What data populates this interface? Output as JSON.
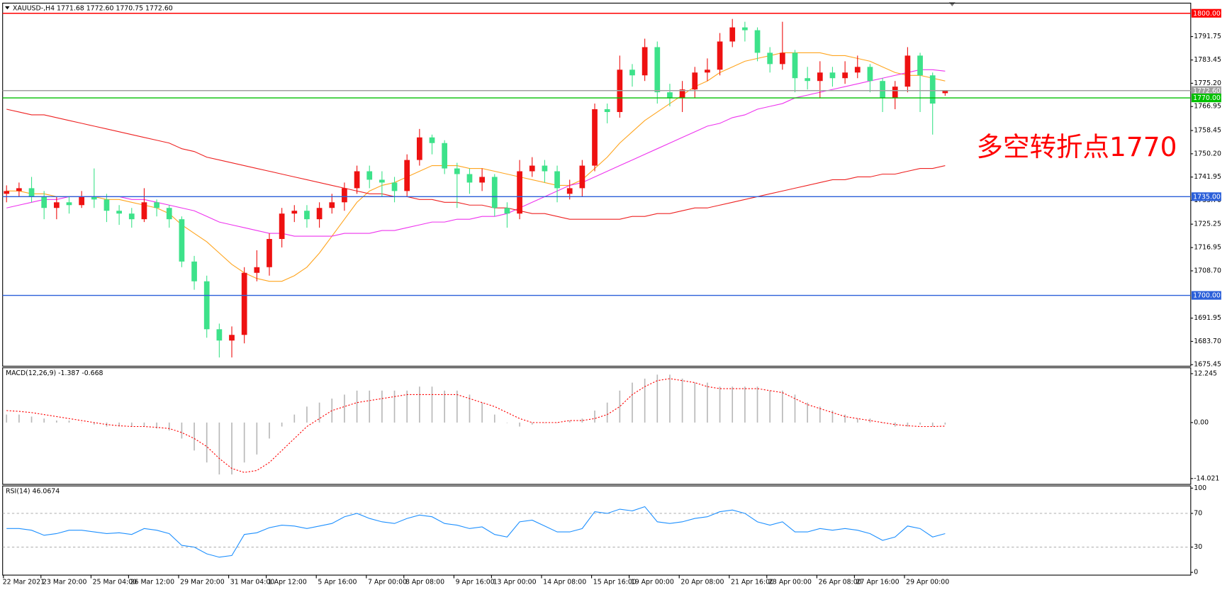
{
  "chart_data": [
    {
      "type": "candlestick",
      "title": "XAUUSD-,H4  1771.68 1772.60 1770.75 1772.60",
      "annotation": "多空转折点1770",
      "annotation_color": "#ff0000",
      "up_color": "#ee1111",
      "down_color": "#3de28a",
      "categories": [
        "22 Mar 2021",
        null,
        null,
        "23 Mar 20:00",
        null,
        null,
        null,
        "25 Mar 04:00",
        null,
        null,
        "26 Mar 12:00",
        null,
        null,
        null,
        "29 Mar 20:00",
        null,
        null,
        null,
        "31 Mar 04:00",
        null,
        null,
        "1 Apr 12:00",
        null,
        null,
        null,
        "5 Apr 16:00",
        null,
        null,
        null,
        "7 Apr 00:00",
        null,
        null,
        "8 Apr 08:00",
        null,
        null,
        null,
        "9 Apr 16:00",
        null,
        null,
        "13 Apr 00:00",
        null,
        null,
        null,
        "14 Apr 08:00",
        null,
        null,
        null,
        "15 Apr 16:00",
        null,
        null,
        "19 Apr 00:00",
        null,
        null,
        null,
        "20 Apr 08:00",
        null,
        null,
        null,
        "21 Apr 16:00",
        null,
        null,
        "23 Apr 00:00",
        null,
        null,
        null,
        "26 Apr 08:00",
        null,
        null,
        "27 Apr 16:00",
        null,
        null,
        null,
        "29 Apr 00:00",
        null,
        null,
        null
      ],
      "open": [
        1736,
        1737,
        1738,
        1735,
        1731,
        1733,
        1732,
        1735,
        1734,
        1730,
        1729,
        1727,
        1733,
        1731,
        1727,
        1712,
        1705,
        1688,
        1684,
        1686,
        1708,
        1710,
        1720,
        1729,
        1730,
        1727,
        1731,
        1733,
        1738,
        1744,
        1741,
        1740,
        1737,
        1748,
        1756,
        1754,
        1745,
        1743,
        1740,
        1742,
        1731,
        1729,
        1744,
        1746,
        1744,
        1736,
        1738,
        1746,
        1766,
        1765,
        1780,
        1778,
        1788,
        1772,
        1770,
        1773,
        1779,
        1780,
        1790,
        1795,
        1794,
        1786,
        1782,
        1786,
        1777,
        1776,
        1779,
        1777,
        1779,
        1781,
        1776,
        1770,
        1774,
        1785,
        1778,
        1771.68
      ],
      "high": [
        1739,
        1740,
        1742,
        1737,
        1735,
        1735,
        1737,
        1745,
        1736,
        1732,
        1731,
        1738,
        1734,
        1732,
        1728,
        1714,
        1707,
        1690,
        1689,
        1710,
        1716,
        1722,
        1731,
        1732,
        1732,
        1733,
        1736,
        1740,
        1746,
        1746,
        1744,
        1742,
        1750,
        1759,
        1757,
        1755,
        1747,
        1745,
        1745,
        1743,
        1733,
        1748,
        1749,
        1748,
        1746,
        1741,
        1748,
        1768,
        1768,
        1785,
        1782,
        1791,
        1790,
        1775,
        1776,
        1781,
        1784,
        1793,
        1798,
        1797,
        1795,
        1788,
        1797,
        1787,
        1781,
        1783,
        1781,
        1783,
        1785,
        1782,
        1777,
        1776,
        1788,
        1786,
        1779,
        1772.6
      ],
      "low": [
        1733,
        1735,
        1733,
        1727,
        1727,
        1729,
        1731,
        1731,
        1726,
        1725,
        1724,
        1726,
        1728,
        1724,
        1710,
        1702,
        1685,
        1678,
        1678,
        1683,
        1705,
        1707,
        1717,
        1726,
        1724,
        1724,
        1729,
        1730,
        1736,
        1738,
        1735,
        1733,
        1735,
        1746,
        1750,
        1743,
        1731,
        1736,
        1737,
        1728,
        1724,
        1727,
        1742,
        1740,
        1733,
        1734,
        1735,
        1744,
        1761,
        1763,
        1774,
        1776,
        1768,
        1767,
        1765,
        1770,
        1776,
        1778,
        1788,
        1790,
        1783,
        1779,
        1780,
        1772,
        1773,
        1770,
        1774,
        1775,
        1777,
        1772,
        1765,
        1766,
        1772,
        1765,
        1757,
        1770.75
      ],
      "close": [
        1737,
        1738,
        1735,
        1731,
        1733,
        1732,
        1735,
        1734,
        1730,
        1729,
        1727,
        1733,
        1731,
        1727,
        1712,
        1705,
        1688,
        1684,
        1686,
        1708,
        1710,
        1720,
        1729,
        1730,
        1727,
        1731,
        1733,
        1738,
        1744,
        1741,
        1740,
        1737,
        1748,
        1756,
        1754,
        1745,
        1743,
        1740,
        1742,
        1731,
        1729,
        1744,
        1746,
        1744,
        1738,
        1738,
        1746,
        1766,
        1765,
        1780,
        1778,
        1788,
        1772,
        1770,
        1773,
        1779,
        1780,
        1790,
        1795,
        1794,
        1786,
        1782,
        1786,
        1777,
        1776,
        1779,
        1777,
        1779,
        1781,
        1776,
        1770,
        1774,
        1785,
        1778,
        1768,
        1772.6
      ],
      "lines": [
        {
          "color": "#ffa51f",
          "values": [
            1737,
            1737,
            1736,
            1736,
            1735,
            1735,
            1735,
            1735,
            1734,
            1734,
            1733,
            1732,
            1731,
            1729,
            1725,
            1722,
            1719,
            1715,
            1711,
            1708,
            1706,
            1705,
            1705,
            1707,
            1710,
            1715,
            1721,
            1727,
            1733,
            1737,
            1739,
            1740,
            1742,
            1744,
            1746,
            1746,
            1746,
            1745,
            1745,
            1744,
            1743,
            1742,
            1741,
            1740,
            1739,
            1739,
            1741,
            1745,
            1749,
            1754,
            1758,
            1762,
            1765,
            1768,
            1771,
            1774,
            1776,
            1779,
            1781,
            1783,
            1784,
            1785,
            1786,
            1786,
            1786,
            1786,
            1785,
            1785,
            1784,
            1783,
            1781,
            1779,
            1778,
            1778,
            1777,
            1776
          ]
        },
        {
          "color": "#ee33ee",
          "values": [
            1731,
            1732,
            1733,
            1734,
            1734,
            1735,
            1735,
            1735,
            1735,
            1735,
            1734,
            1734,
            1733,
            1732,
            1731,
            1730,
            1728,
            1726,
            1725,
            1724,
            1723,
            1722,
            1722,
            1721,
            1721,
            1721,
            1721,
            1722,
            1722,
            1722,
            1723,
            1723,
            1724,
            1725,
            1726,
            1726,
            1727,
            1727,
            1728,
            1728,
            1729,
            1731,
            1733,
            1735,
            1737,
            1739,
            1740,
            1742,
            1744,
            1746,
            1748,
            1750,
            1752,
            1754,
            1756,
            1758,
            1760,
            1761,
            1763,
            1764,
            1766,
            1767,
            1768,
            1770,
            1771,
            1772,
            1773,
            1774,
            1775,
            1776,
            1777,
            1778,
            1779,
            1780,
            1780,
            1779.5
          ]
        },
        {
          "color": "#ee2222",
          "values": [
            1766,
            1765,
            1764,
            1764,
            1763,
            1762,
            1761,
            1760,
            1759,
            1758,
            1757,
            1756,
            1755,
            1754,
            1752,
            1751,
            1749,
            1748,
            1747,
            1746,
            1745,
            1744,
            1743,
            1742,
            1741,
            1740,
            1739,
            1738,
            1737,
            1736,
            1736,
            1735,
            1735,
            1734,
            1734,
            1733,
            1733,
            1732,
            1732,
            1731,
            1731,
            1730,
            1729,
            1729,
            1728,
            1727,
            1727,
            1727,
            1727,
            1727,
            1728,
            1728,
            1729,
            1729,
            1730,
            1731,
            1731,
            1732,
            1733,
            1734,
            1735,
            1736,
            1737,
            1738,
            1739,
            1740,
            1741,
            1741,
            1742,
            1742,
            1743,
            1743,
            1744,
            1745,
            1745,
            1746
          ]
        }
      ],
      "levels": [
        {
          "value": 1800,
          "label": "1800.00",
          "color": "#ff0000"
        },
        {
          "value": 1772.6,
          "label": "1772.60",
          "color": "#a0a0a0"
        },
        {
          "value": 1770,
          "label": "1770.00",
          "color": "#00c000"
        },
        {
          "value": 1735,
          "label": "1735.00",
          "color": "#2b5fd9"
        },
        {
          "value": 1700,
          "label": "1700.00",
          "color": "#2b5fd9"
        }
      ],
      "ylim": [
        1674.9,
        1803.6
      ],
      "yticks": [
        1791.75,
        1783.45,
        {
          "value": 1775.2,
          "label": "1775.20"
        },
        1766.95,
        1758.45,
        {
          "value": 1750.2,
          "label": "1750.20"
        },
        1741.95,
        {
          "value": 1733.7,
          "label": "1733.70"
        },
        1725.25,
        1716.95,
        {
          "value": 1708.7,
          "label": "1708.70"
        },
        1691.95,
        {
          "value": 1683.7,
          "label": "1683.70"
        },
        1675.45
      ]
    },
    {
      "type": "macd",
      "title": "MACD(12,26,9) -1.387 -0.668",
      "histogram_color": "#b8b8b8",
      "histogram": [
        2,
        2,
        1.5,
        1,
        0.5,
        0.5,
        0,
        -0.5,
        -1,
        -1,
        -1,
        -1,
        -1.5,
        -2,
        -4,
        -7,
        -10,
        -13,
        -13,
        -10,
        -8,
        -4,
        -1,
        2,
        4,
        5,
        6,
        7,
        8,
        8,
        8,
        8,
        8,
        9,
        9,
        8,
        8,
        7,
        5,
        2,
        0,
        -1,
        -0.5,
        0,
        0,
        0.5,
        1,
        3,
        5,
        8,
        10,
        11,
        12,
        12,
        11,
        10,
        10,
        9,
        9,
        9,
        9,
        8,
        8,
        7,
        5,
        4,
        3,
        2,
        1,
        1,
        0,
        -1,
        -1,
        -0.5,
        -1,
        -0.5
      ],
      "signal": {
        "color": "#ff0000",
        "values": [
          3,
          2.8,
          2.5,
          2,
          1.5,
          1,
          0.5,
          0,
          -0.5,
          -0.8,
          -1,
          -1,
          -1.2,
          -1.5,
          -2.5,
          -4,
          -6,
          -9,
          -11.5,
          -12.5,
          -12,
          -10,
          -7,
          -4,
          -1,
          1,
          3,
          4,
          5,
          5.5,
          6,
          6.5,
          7,
          7,
          7,
          7,
          7,
          6,
          5,
          4,
          2.5,
          1,
          0,
          0,
          0,
          0.5,
          0.5,
          1,
          2,
          4,
          7,
          9,
          10.5,
          11,
          10.5,
          10,
          9,
          8.5,
          8.5,
          8.5,
          8.5,
          8,
          7.5,
          6,
          4.5,
          3.5,
          2.5,
          1.5,
          1,
          0.5,
          0,
          -0.5,
          -0.8,
          -1,
          -1,
          -0.9
        ]
      },
      "ylim": [
        -15.48,
        13.72
      ],
      "yticks": [
        12.245,
        {
          "value": 0,
          "label": "0.00"
        },
        -14.021
      ]
    },
    {
      "type": "line",
      "title": "RSI(14) 46.0674",
      "color": "#1e90ff",
      "values": [
        52,
        52,
        50,
        44,
        46,
        50,
        50,
        48,
        46,
        47,
        45,
        52,
        50,
        46,
        32,
        30,
        22,
        18,
        20,
        45,
        47,
        53,
        56,
        55,
        52,
        55,
        58,
        66,
        70,
        64,
        60,
        58,
        64,
        68,
        66,
        58,
        56,
        52,
        54,
        45,
        42,
        60,
        62,
        55,
        48,
        48,
        52,
        72,
        70,
        75,
        73,
        78,
        60,
        58,
        60,
        64,
        66,
        72,
        74,
        70,
        60,
        56,
        60,
        48,
        48,
        52,
        50,
        52,
        50,
        46,
        38,
        42,
        55,
        52,
        42,
        46
      ],
      "levels": [
        70,
        30
      ],
      "level_color": "#a0a0a0",
      "ylim": [
        -3.3,
        102.6
      ],
      "yticks": [
        100,
        70,
        30,
        0
      ]
    }
  ]
}
